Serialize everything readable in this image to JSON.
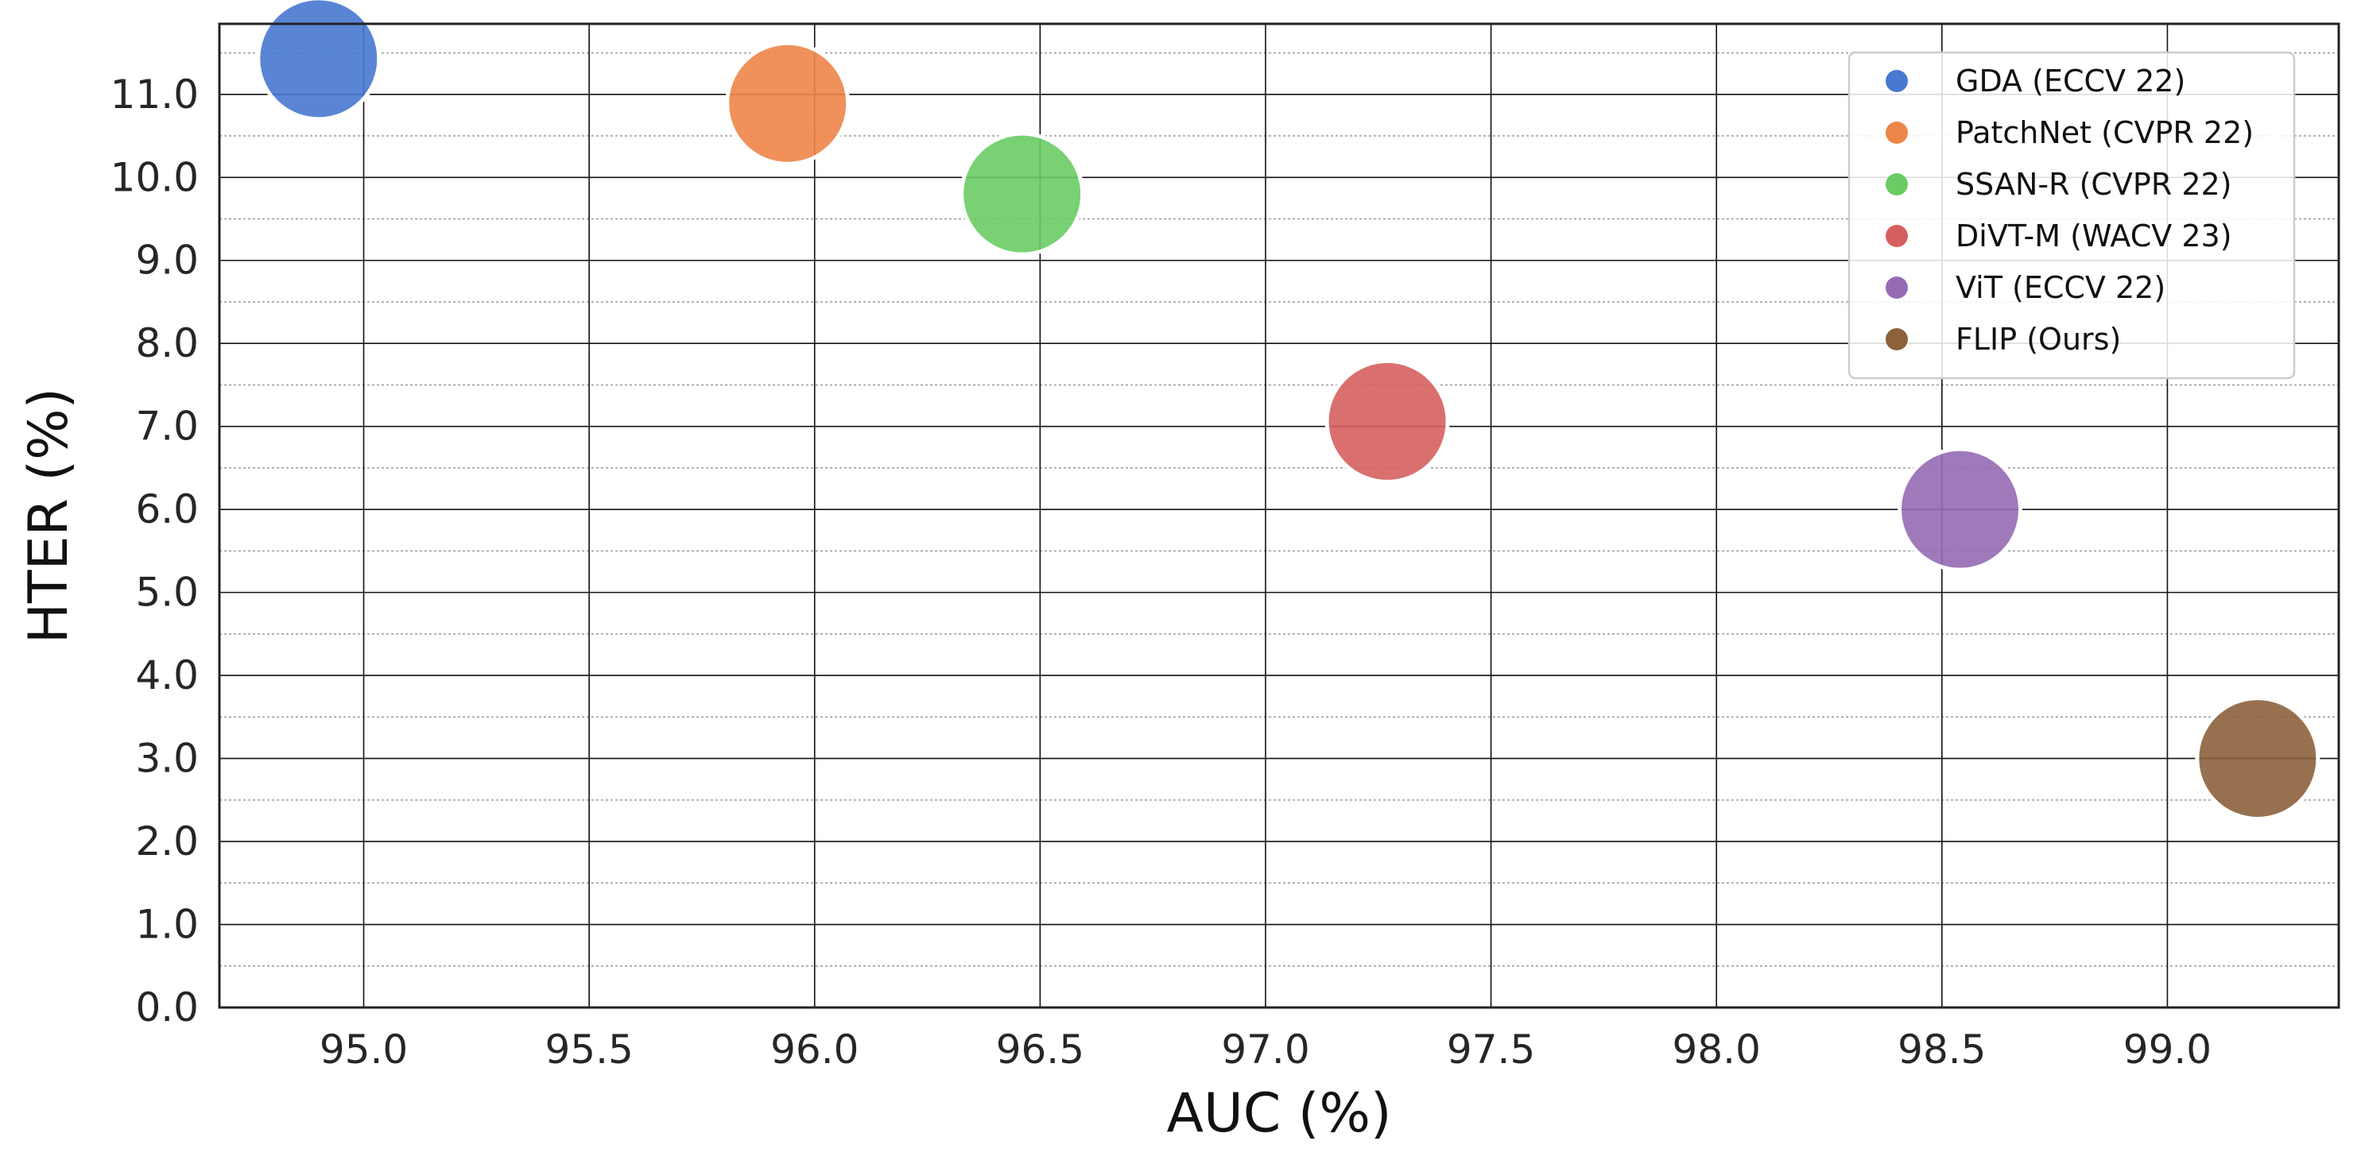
{
  "chart_data": {
    "type": "scatter",
    "title": "",
    "xlabel": "AUC (%)",
    "ylabel": "HTER (%)",
    "xlim": [
      94.68,
      99.38
    ],
    "ylim": [
      0.0,
      11.85
    ],
    "x_ticks": [
      95.0,
      95.5,
      96.0,
      96.5,
      97.0,
      97.5,
      98.0,
      98.5,
      99.0
    ],
    "x_tick_labels": [
      "95.0",
      "95.5",
      "96.0",
      "96.5",
      "97.0",
      "97.5",
      "98.0",
      "98.5",
      "99.0"
    ],
    "y_ticks": [
      0,
      1,
      2,
      3,
      4,
      5,
      6,
      7,
      8,
      9,
      10,
      11
    ],
    "y_tick_labels": [
      "0.0",
      "1.0",
      "2.0",
      "3.0",
      "4.0",
      "5.0",
      "6.0",
      "7.0",
      "8.0",
      "9.0",
      "10.0",
      "11.0"
    ],
    "grid": {
      "major": true,
      "minor": true
    },
    "legend_position": "top-right",
    "series": [
      {
        "name": "GDA (ECCV 22)",
        "x": 94.9,
        "y": 11.43,
        "color": "#4878d0"
      },
      {
        "name": "PatchNet (CVPR 22)",
        "x": 95.94,
        "y": 10.89,
        "color": "#ee854a"
      },
      {
        "name": "SSAN-R (CVPR 22)",
        "x": 96.46,
        "y": 9.8,
        "color": "#6acc64"
      },
      {
        "name": "DiVT-M (WACV 23)",
        "x": 97.27,
        "y": 7.06,
        "color": "#d65f5f"
      },
      {
        "name": "ViT (ECCV 22)",
        "x": 98.54,
        "y": 6.0,
        "color": "#956cb4"
      },
      {
        "name": "FLIP (Ours)",
        "x": 99.2,
        "y": 3.0,
        "color": "#8c613c"
      }
    ]
  }
}
